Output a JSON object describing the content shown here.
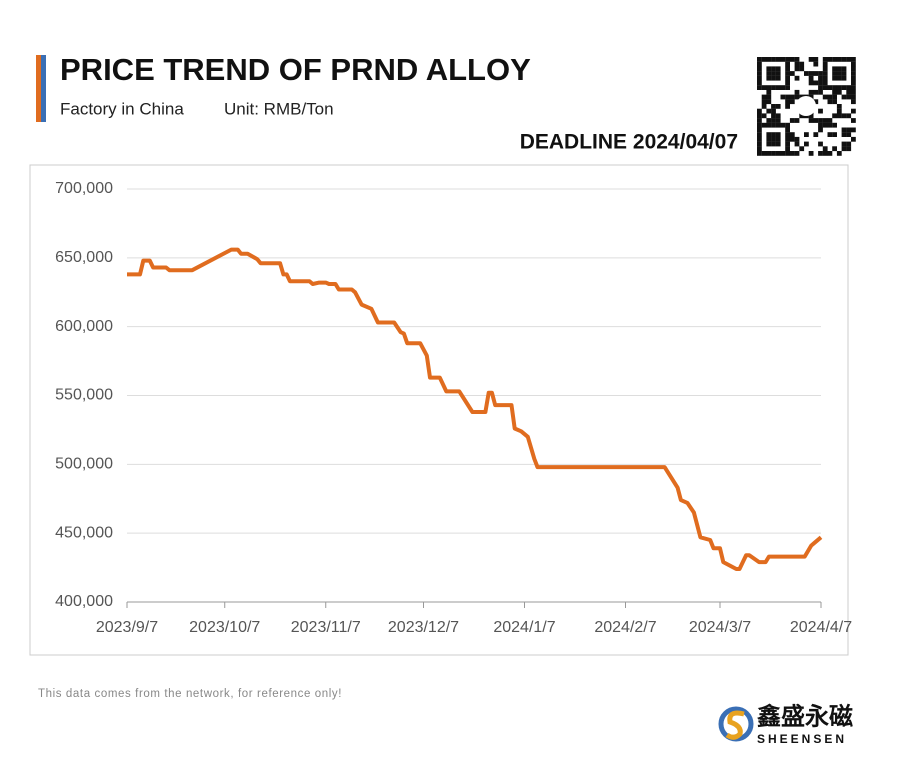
{
  "chart_data": {
    "type": "line",
    "title": "PRICE TREND OF PRND ALLOY",
    "subtitle": "Factory in China",
    "unit": "Unit: RMB/Ton",
    "deadline": "DEADLINE 2024/04/07",
    "note": "This data comes from the network, for reference only!",
    "brand": "鑫盛永磁",
    "brand_latin": "SHEENSEN",
    "x": [
      "2023/9/7",
      "2023/9/11",
      "2023/9/12",
      "2023/9/14",
      "2023/9/15",
      "2023/9/19",
      "2023/9/20",
      "2023/9/27",
      "2023/10/9",
      "2023/10/11",
      "2023/10/12",
      "2023/10/14",
      "2023/10/17",
      "2023/10/18",
      "2023/10/24",
      "2023/10/25",
      "2023/10/26",
      "2023/10/27",
      "2023/11/2",
      "2023/11/3",
      "2023/11/5",
      "2023/11/7",
      "2023/11/8",
      "2023/11/10",
      "2023/11/11",
      "2023/11/15",
      "2023/11/16",
      "2023/11/18",
      "2023/11/21",
      "2023/11/23",
      "2023/11/28",
      "2023/11/30",
      "2023/12/1",
      "2023/12/2",
      "2023/12/6",
      "2023/12/8",
      "2023/12/9",
      "2023/12/12",
      "2023/12/14",
      "2023/12/18",
      "2023/12/22",
      "2023/12/26",
      "2023/12/27",
      "2023/12/28",
      "2023/12/29",
      "2024/1/3",
      "2024/1/4",
      "2024/1/6",
      "2024/1/8",
      "2024/1/10",
      "2024/1/11",
      "2024/2/19",
      "2024/2/23",
      "2024/2/24",
      "2024/2/26",
      "2024/2/28",
      "2024/3/1",
      "2024/3/4",
      "2024/3/5",
      "2024/3/7",
      "2024/3/8",
      "2024/3/12",
      "2024/3/13",
      "2024/3/15",
      "2024/3/16",
      "2024/3/19",
      "2024/3/21",
      "2024/3/22",
      "2024/4/2",
      "2024/4/4",
      "2024/4/5",
      "2024/4/7"
    ],
    "series": [
      {
        "name": "PrNd Alloy",
        "color": "#e06c1f",
        "values": [
          638000,
          638000,
          648000,
          648000,
          643000,
          643000,
          641000,
          641000,
          656000,
          656000,
          653000,
          653000,
          649000,
          646000,
          646000,
          638000,
          638000,
          633000,
          633000,
          631000,
          632000,
          632000,
          631000,
          631000,
          627000,
          627000,
          625000,
          616000,
          613000,
          603000,
          603000,
          596000,
          595000,
          588000,
          588000,
          579000,
          563000,
          563000,
          553000,
          553000,
          538000,
          538000,
          552000,
          552000,
          543000,
          543000,
          526000,
          524000,
          520000,
          504000,
          498000,
          498000,
          483000,
          474000,
          472000,
          465000,
          447000,
          445000,
          439000,
          439000,
          429000,
          424000,
          424000,
          434000,
          434000,
          429000,
          429000,
          433000,
          433000,
          441000,
          443000,
          447000
        ]
      }
    ],
    "xlim": [
      "2023/9/7",
      "2024/4/7"
    ],
    "xticks": [
      "2023/9/7",
      "2023/10/7",
      "2023/11/7",
      "2023/12/7",
      "2024/1/7",
      "2024/2/7",
      "2024/3/7",
      "2024/4/7"
    ],
    "ylim": [
      400000,
      700000
    ],
    "yticks": [
      {
        "value": 400000,
        "label": "400,000"
      },
      {
        "value": 450000,
        "label": "450,000"
      },
      {
        "value": 500000,
        "label": "500,000"
      },
      {
        "value": 550000,
        "label": "550,000"
      },
      {
        "value": 600000,
        "label": "600,000"
      },
      {
        "value": 650000,
        "label": "650,000"
      },
      {
        "value": 700000,
        "label": "700,000"
      }
    ],
    "grid": true
  }
}
